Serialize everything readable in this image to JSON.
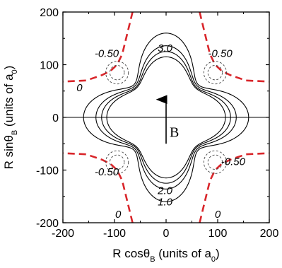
{
  "chart_data": {
    "type": "contour",
    "xlabel": {
      "main": "R cosθ",
      "sub1": "B",
      "mid": " (units of a",
      "sub2": "0",
      "end": ")"
    },
    "ylabel": {
      "main": "R sinθ",
      "sub1": "B",
      "mid": " (units of a",
      "sub2": "0",
      "end": ")"
    },
    "xlim": [
      -200,
      200
    ],
    "ylim": [
      -200,
      200
    ],
    "xticks": [
      -200,
      -100,
      0,
      100,
      200
    ],
    "yticks": [
      -200,
      -100,
      0,
      100,
      200
    ],
    "grid": false,
    "legend": "none",
    "field_vector": {
      "label": "B",
      "direction": "up",
      "from": [
        0,
        -50
      ],
      "to": [
        0,
        42
      ]
    },
    "colors": {
      "positive_contours": "#000000",
      "zero_contour": "#d9262b",
      "negative_contours": "#444444",
      "axis": "#000000"
    },
    "contours": [
      {
        "level": 1.0,
        "label": "1.0",
        "style": "solid",
        "radius_profile": {
          "r_axis": 115,
          "r_diag": 80
        }
      },
      {
        "level": 1.5,
        "label": "",
        "style": "solid",
        "radius_profile": {
          "r_axis": 125,
          "r_diag": 82
        }
      },
      {
        "level": 2.0,
        "label": "2.0",
        "style": "solid",
        "radius_profile": {
          "r_axis": 136,
          "r_diag": 85
        }
      },
      {
        "level": 3.0,
        "label": "3.0",
        "style": "solid",
        "radius_profile": {
          "r_axis": 160,
          "r_diag": 88
        }
      },
      {
        "level": 0,
        "label": "0",
        "style": "dashed",
        "branches": [
          [
            [
              65,
              200
            ],
            [
              75,
              160
            ],
            [
              85,
              120
            ],
            [
              95,
              100
            ],
            [
              108,
              88
            ],
            [
              125,
              80
            ],
            [
              155,
              70
            ],
            [
              200,
              68
            ]
          ],
          [
            [
              -65,
              200
            ],
            [
              -75,
              160
            ],
            [
              -85,
              120
            ],
            [
              -95,
              100
            ],
            [
              -108,
              88
            ],
            [
              -125,
              80
            ],
            [
              -155,
              70
            ],
            [
              -200,
              68
            ]
          ],
          [
            [
              65,
              -200
            ],
            [
              75,
              -160
            ],
            [
              85,
              -120
            ],
            [
              95,
              -100
            ],
            [
              108,
              -88
            ],
            [
              125,
              -80
            ],
            [
              155,
              -70
            ],
            [
              200,
              -68
            ]
          ],
          [
            [
              -65,
              -200
            ],
            [
              -75,
              -160
            ],
            [
              -85,
              -120
            ],
            [
              -95,
              -100
            ],
            [
              -108,
              -88
            ],
            [
              -125,
              -80
            ],
            [
              -155,
              -70
            ],
            [
              -200,
              -68
            ]
          ]
        ]
      },
      {
        "level": -0.5,
        "label": "-0.50",
        "style": "dashed",
        "circles": [
          {
            "center": [
              -95,
              85
            ],
            "radius": 22
          },
          {
            "center": [
              -95,
              85
            ],
            "radius": 14
          },
          {
            "center": [
              95,
              85
            ],
            "radius": 22
          },
          {
            "center": [
              95,
              85
            ],
            "radius": 14
          },
          {
            "center": [
              -95,
              -85
            ],
            "radius": 22
          },
          {
            "center": [
              -95,
              -85
            ],
            "radius": 14
          },
          {
            "center": [
              95,
              -85
            ],
            "radius": 22
          },
          {
            "center": [
              95,
              -85
            ],
            "radius": 14
          }
        ]
      }
    ],
    "annotations": [
      {
        "text": "3.0",
        "x": -2,
        "y": 130
      },
      {
        "text": "2.0",
        "x": -2,
        "y": -140
      },
      {
        "text": "1.0",
        "x": -2,
        "y": -162
      },
      {
        "text": "-0.50",
        "x": -115,
        "y": 120
      },
      {
        "text": "-0.50",
        "x": 105,
        "y": 120
      },
      {
        "text": "-0.50",
        "x": -115,
        "y": -105
      },
      {
        "text": "-0.50",
        "x": 130,
        "y": -85
      },
      {
        "text": "0",
        "x": -168,
        "y": 55
      },
      {
        "text": "0",
        "x": -93,
        "y": -185
      },
      {
        "text": "0",
        "x": 100,
        "y": -185
      }
    ]
  }
}
